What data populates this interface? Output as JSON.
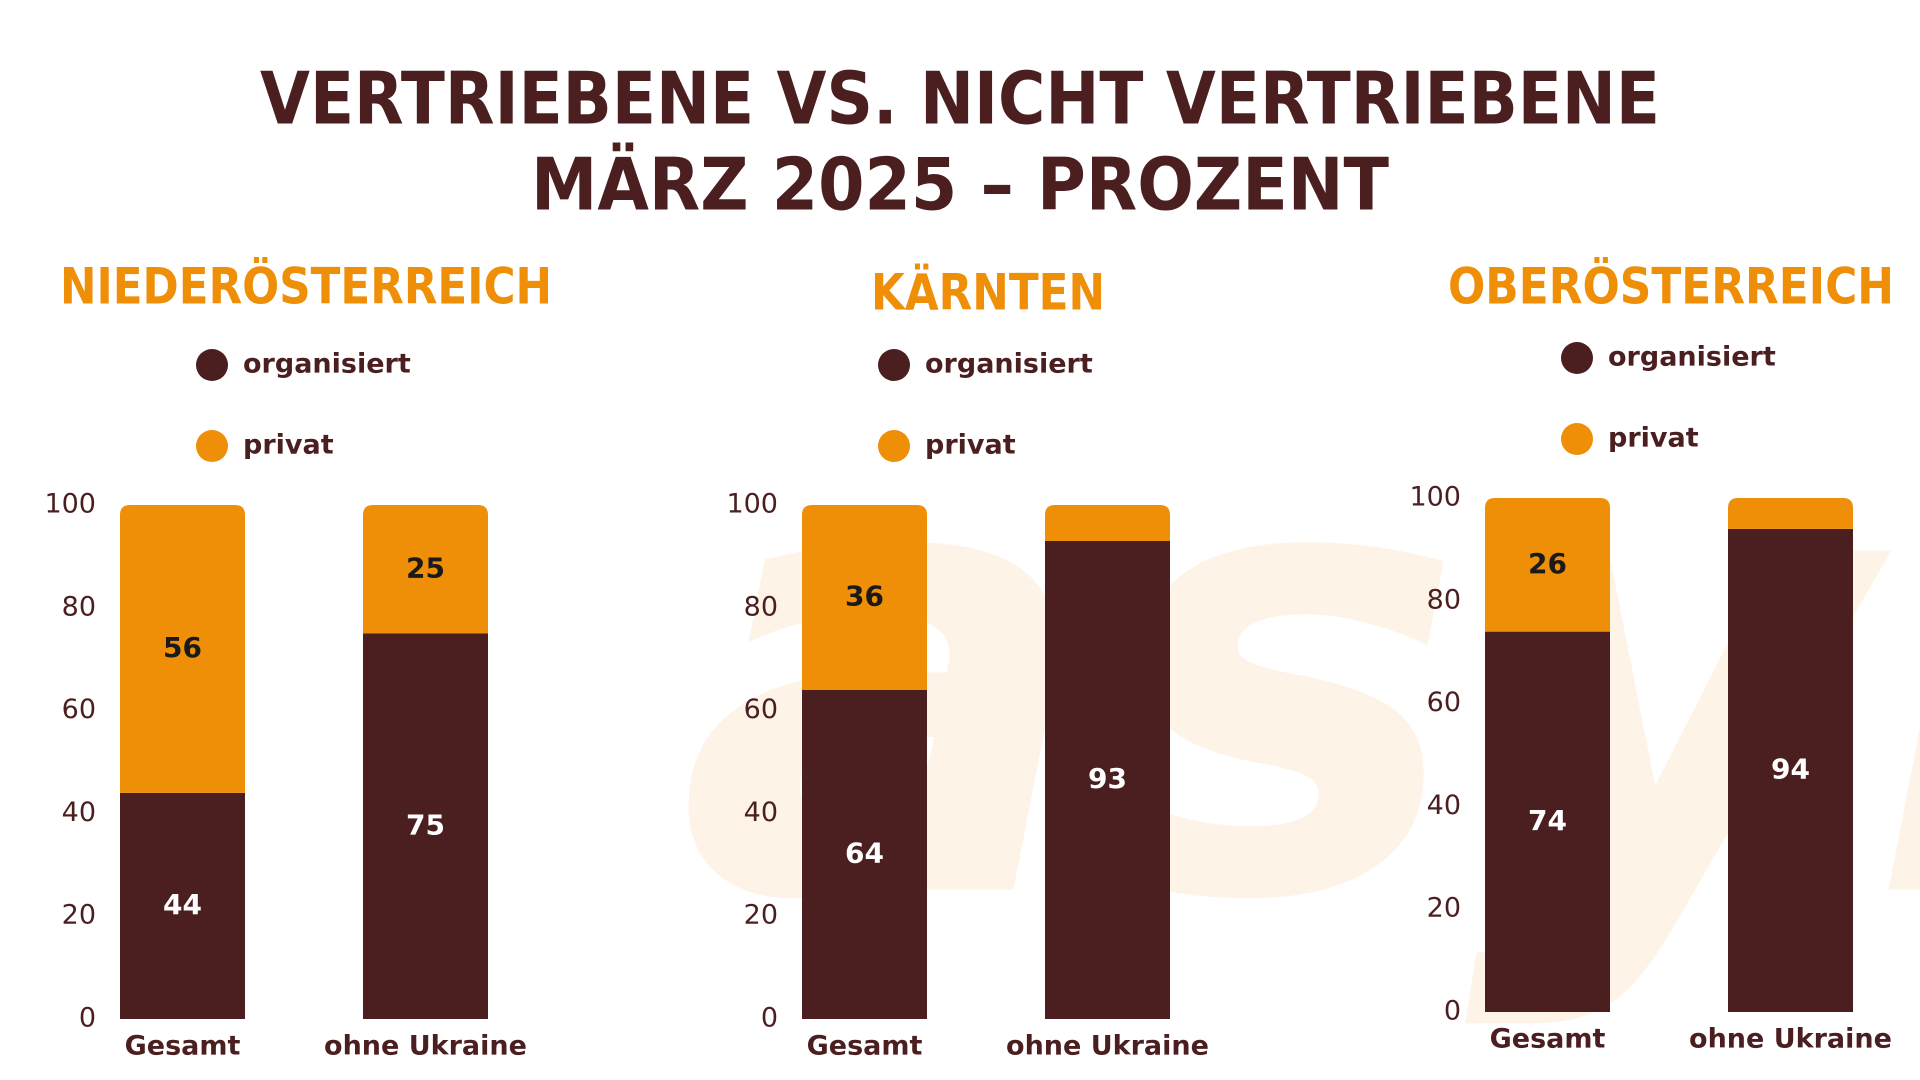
{
  "title": [
    "VERTRIEBENE VS. NICHT VERTRIEBENE",
    "MÄRZ 2025 – PROZENT"
  ],
  "watermark": "asyl",
  "chart_data": [
    {
      "type": "bar",
      "stacked": true,
      "title": "NIEDERÖSTERREICH",
      "categories": [
        "Gesamt",
        "ohne Ukraine"
      ],
      "series": [
        {
          "name": "organisiert",
          "color": "#4b1f20",
          "values": [
            44,
            75
          ],
          "value_labels": [
            44,
            75
          ]
        },
        {
          "name": "privat",
          "color": "#ef8e07",
          "values": [
            56,
            25
          ],
          "value_labels": [
            56,
            25
          ]
        }
      ],
      "ylim": [
        0,
        100
      ],
      "yticks": [
        0,
        20,
        40,
        60,
        80,
        100
      ]
    },
    {
      "type": "bar",
      "stacked": true,
      "title": "KÄRNTEN",
      "categories": [
        "Gesamt",
        "ohne Ukraine"
      ],
      "series": [
        {
          "name": "organisiert",
          "color": "#4b1f20",
          "values": [
            64,
            93
          ],
          "value_labels": [
            64,
            93
          ]
        },
        {
          "name": "privat",
          "color": "#ef8e07",
          "values": [
            36,
            7
          ],
          "value_labels": [
            36,
            null
          ]
        }
      ],
      "ylim": [
        0,
        100
      ],
      "yticks": [
        0,
        20,
        40,
        60,
        80,
        100
      ]
    },
    {
      "type": "bar",
      "stacked": true,
      "title": "OBERÖSTERREICH",
      "categories": [
        "Gesamt",
        "ohne Ukraine"
      ],
      "series": [
        {
          "name": "organisiert",
          "color": "#4b1f20",
          "values": [
            74,
            94
          ],
          "value_labels": [
            74,
            94
          ]
        },
        {
          "name": "privat",
          "color": "#ef8e07",
          "values": [
            26,
            6
          ],
          "value_labels": [
            26,
            null
          ]
        }
      ],
      "ylim": [
        0,
        100
      ],
      "yticks": [
        0,
        20,
        40,
        60,
        80,
        100
      ]
    }
  ]
}
